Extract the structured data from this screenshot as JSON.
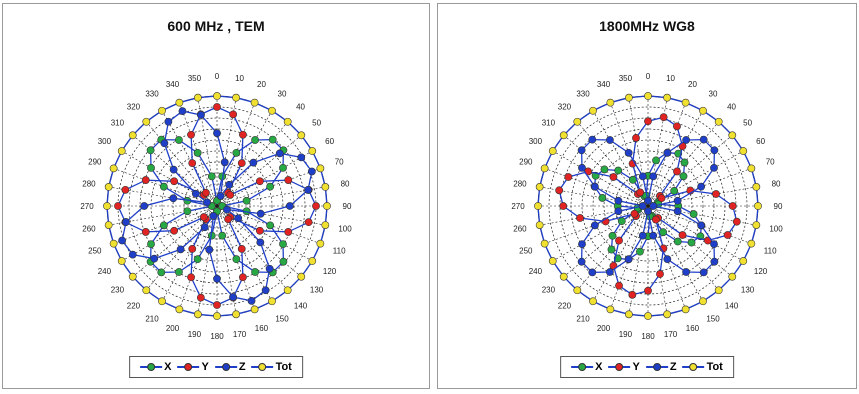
{
  "panels": [
    {
      "title": "600 MHz , TEM",
      "legend": [
        "X",
        "Y",
        "Z",
        "Tot"
      ],
      "chart_data": {
        "type": "polar-line",
        "theta_ticks": [
          0,
          10,
          20,
          30,
          40,
          50,
          60,
          70,
          80,
          90,
          100,
          110,
          120,
          130,
          140,
          150,
          160,
          170,
          180,
          190,
          200,
          210,
          220,
          230,
          240,
          250,
          260,
          270,
          280,
          290,
          300,
          310,
          320,
          330,
          340,
          350
        ],
        "r_range": [
          0,
          1
        ],
        "series": [
          {
            "name": "X",
            "color": "#27a844",
            "pattern": "abs(cos(2*(theta-45)))",
            "scale": 0.8
          },
          {
            "name": "Y",
            "color": "#e02323",
            "pattern": "abs(cos(2*theta))",
            "scale": 0.9
          },
          {
            "name": "Z",
            "color": "#1f3fc8",
            "pattern": "abs(cos(2*(theta+22)))",
            "scale": 0.92
          },
          {
            "name": "Tot",
            "color": "#f0e030",
            "pattern": "constant",
            "scale": 1.0
          }
        ]
      }
    },
    {
      "title": "1800MHz WG8",
      "legend": [
        "X",
        "Y",
        "Z",
        "Tot"
      ],
      "chart_data": {
        "type": "polar-line",
        "theta_ticks": [
          0,
          10,
          20,
          30,
          40,
          50,
          60,
          70,
          80,
          90,
          100,
          110,
          120,
          130,
          140,
          150,
          160,
          170,
          180,
          190,
          200,
          210,
          220,
          230,
          240,
          250,
          260,
          270,
          280,
          290,
          300,
          310,
          320,
          330,
          340,
          350
        ],
        "r_range": [
          0,
          1
        ],
        "series": [
          {
            "name": "X",
            "color": "#27a844",
            "pattern": "abs(cos(2*(theta-30)))",
            "scale": 0.55
          },
          {
            "name": "Y",
            "color": "#e02323",
            "pattern": "abs(cos(2*(theta-10)))",
            "scale": 0.82
          },
          {
            "name": "Z",
            "color": "#1f3fc8",
            "pattern": "abs(cos(2*(theta+45)))",
            "scale": 0.8
          },
          {
            "name": "Tot",
            "color": "#f0e030",
            "pattern": "constant",
            "scale": 1.0
          }
        ]
      }
    }
  ],
  "colors": {
    "grid": "#222222",
    "outer": "#1f3fc8"
  }
}
